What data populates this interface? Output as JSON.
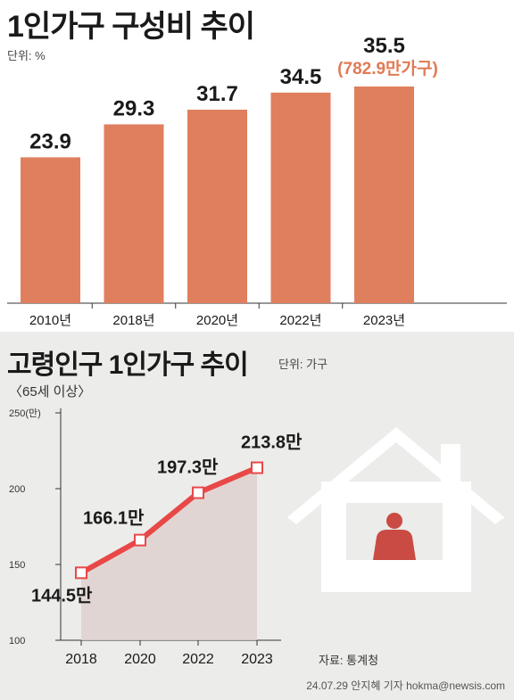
{
  "colors": {
    "bar": "#e07f5e",
    "note": "#e07a55",
    "line": "#e84848",
    "area": "#dfd1cf",
    "house": "#ffffff",
    "person": "#c94b43",
    "bottom_bg": "#ececea"
  },
  "icons": {
    "illustration": "house-person-icon"
  },
  "chart_data": [
    {
      "type": "bar",
      "title": "1인가구 구성비 추이",
      "unit": "단위: %",
      "categories": [
        "2010년",
        "2018년",
        "2020년",
        "2022년",
        "2023년"
      ],
      "values": [
        23.9,
        29.3,
        31.7,
        34.5,
        35.5
      ],
      "value_labels": [
        "23.9",
        "29.3",
        "31.7",
        "34.5",
        "35.5"
      ],
      "annotations": [
        {
          "category": "2023년",
          "text": "(782.9만가구)"
        }
      ],
      "ylim": [
        0,
        35.5
      ]
    },
    {
      "type": "line",
      "title": "고령인구 1인가구 추이",
      "subtitle": "〈65세 이상〉",
      "unit": "단위: 가구",
      "x": [
        "2018",
        "2020",
        "2022",
        "2023"
      ],
      "values": [
        144.5,
        166.1,
        197.3,
        213.8
      ],
      "value_labels": [
        "144.5만",
        "166.1만",
        "197.3만",
        "213.8만"
      ],
      "yticks": [
        "100",
        "150",
        "200",
        "250(만)"
      ],
      "ylim": [
        100,
        250
      ],
      "area_fill": true
    }
  ],
  "footer": {
    "source": "자료: 통계청",
    "credit": "24.07.29 안지혜 기자 hokma@newsis.com"
  }
}
